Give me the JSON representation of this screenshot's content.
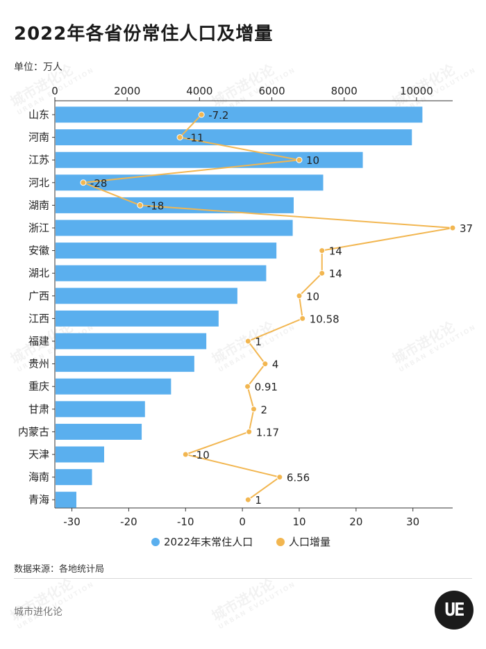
{
  "header": {
    "title": "2022年各省份常住人口及增量",
    "unit": "单位：万人"
  },
  "footer": {
    "source": "数据来源：各地统计局",
    "brand": "城市进化论",
    "logo_text": "UE"
  },
  "watermark": {
    "cn": "城市进化论",
    "en": "URBAN EVOLUTION"
  },
  "colors": {
    "bar": "#5aafee",
    "line": "#f2b650"
  },
  "chart_data": {
    "type": "bar",
    "orientation": "horizontal",
    "title": "2022年各省份常住人口及增量",
    "categories": [
      "山东",
      "河南",
      "江苏",
      "河北",
      "湖南",
      "浙江",
      "安徽",
      "湖北",
      "广西",
      "江西",
      "福建",
      "贵州",
      "重庆",
      "甘肃",
      "内蒙古",
      "天津",
      "海南",
      "青海"
    ],
    "series": [
      {
        "name": "2022年末常住人口",
        "type": "bar",
        "axis": "top",
        "values": [
          10163,
          9872,
          8515,
          7420,
          6604,
          6577,
          6127,
          5844,
          5047,
          4528,
          4188,
          3856,
          3213,
          2492,
          2401,
          1363,
          1027,
          595
        ]
      },
      {
        "name": "人口增量",
        "type": "line",
        "axis": "bottom",
        "values": [
          -7.2,
          -11,
          10,
          -28,
          -18,
          37,
          14,
          14,
          10,
          10.58,
          1,
          4,
          0.91,
          2,
          1.17,
          -10,
          6.56,
          1
        ],
        "labels": [
          "-7.2",
          "-11",
          "10",
          "-28",
          "-18",
          "37",
          "14",
          "14",
          "10",
          "10.58",
          "1",
          "4",
          "0.91",
          "2",
          "1.17",
          "-10",
          "6.56",
          "1"
        ]
      }
    ],
    "top_axis": {
      "range": [
        0,
        11000
      ],
      "ticks": [
        0,
        2000,
        4000,
        6000,
        8000,
        10000
      ],
      "tick_labels": [
        "0",
        "2000",
        "4000",
        "6000",
        "8000",
        "10000"
      ]
    },
    "bottom_axis": {
      "range": [
        -33,
        37
      ],
      "ticks": [
        -30,
        -20,
        -10,
        0,
        10,
        20,
        30
      ],
      "tick_labels": [
        "-30",
        "-20",
        "-10",
        "0",
        "10",
        "20",
        "30"
      ]
    },
    "legend": [
      {
        "label": "2022年末常住人口",
        "color": "#5aafee"
      },
      {
        "label": "人口增量",
        "color": "#f2b650"
      }
    ]
  }
}
